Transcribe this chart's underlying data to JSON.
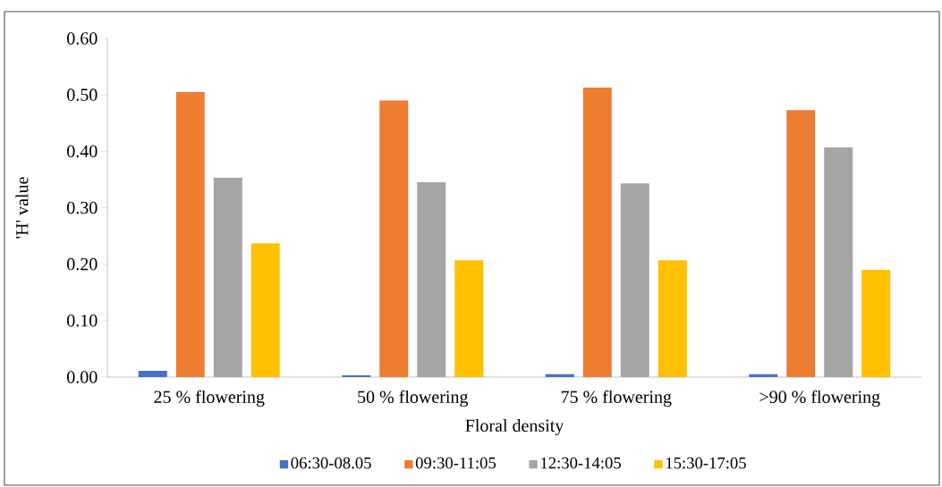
{
  "chart_data": {
    "type": "bar",
    "xlabel": "Floral density",
    "ylabel": "'H' value",
    "categories": [
      "25 % flowering",
      "50 % flowering",
      "75 % flowering",
      ">90 % flowering"
    ],
    "series": [
      {
        "name": "06:30-08.05",
        "color": "#4472c4",
        "values": [
          0.011,
          0.003,
          0.005,
          0.005
        ]
      },
      {
        "name": "09:30-11:05",
        "color": "#ed7d31",
        "values": [
          0.505,
          0.49,
          0.513,
          0.473
        ]
      },
      {
        "name": "12:30-14:05",
        "color": "#a5a5a5",
        "values": [
          0.353,
          0.345,
          0.343,
          0.407
        ]
      },
      {
        "name": "15:30-17:05",
        "color": "#ffc000",
        "values": [
          0.237,
          0.207,
          0.207,
          0.19
        ]
      }
    ],
    "ylim": [
      0,
      0.6
    ],
    "yticks": [
      {
        "value": 0,
        "label": "0.00"
      },
      {
        "value": 0.1,
        "label": "0.10"
      },
      {
        "value": 0.2,
        "label": "0.20"
      },
      {
        "value": 0.3,
        "label": "0.30"
      },
      {
        "value": 0.4,
        "label": "0.40"
      },
      {
        "value": 0.5,
        "label": "0.50"
      },
      {
        "value": 0.6,
        "label": "0.60"
      }
    ],
    "grid": false,
    "legend": "bottom"
  }
}
